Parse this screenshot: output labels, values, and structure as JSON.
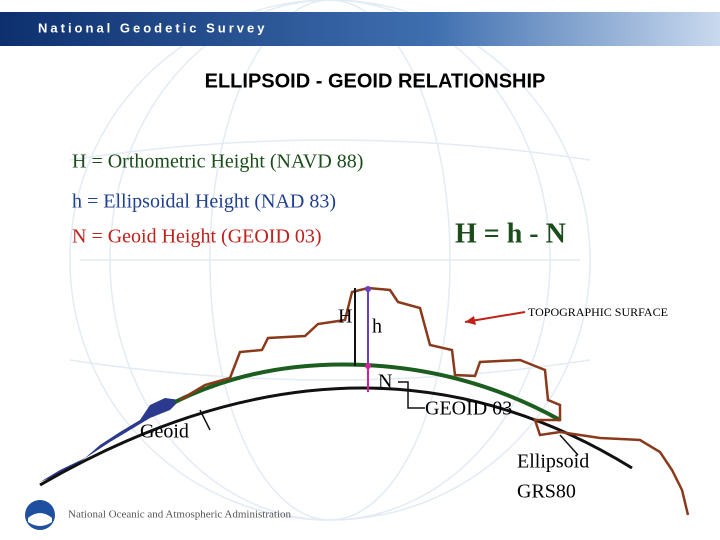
{
  "header": {
    "title": "National Geodetic Survey"
  },
  "slide": {
    "title": "ELLIPSOID - GEOID RELATIONSHIP",
    "definitions": [
      "H = Orthometric Height  (NAVD 88)",
      "h = Ellipsoidal Height (NAD 83)",
      "N = Geoid Height (GEOID 03)"
    ],
    "formula": "H = h - N"
  },
  "diagram": {
    "labels": {
      "H": "H",
      "h": "h",
      "N": "N",
      "topographic": "TOPOGRAPHIC SURFACE",
      "geoid03": "GEOID 03",
      "geoid": "Geoid",
      "ellipsoid": "Ellipsoid",
      "grs80": "GRS80"
    }
  },
  "footer": {
    "text": "National Oceanic and Atmospheric Administration"
  }
}
